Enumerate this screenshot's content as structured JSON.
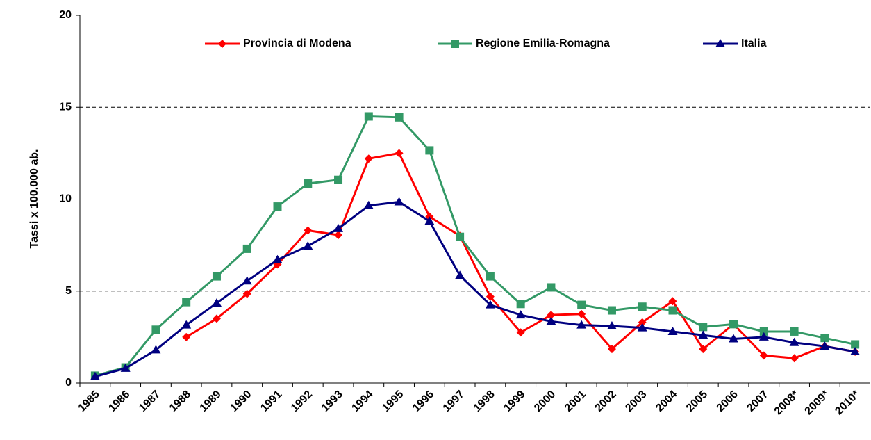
{
  "chart_data": {
    "type": "line",
    "y_label": "Tassi x 100.000 ab.",
    "categories": [
      "1985",
      "1986",
      "1987",
      "1988",
      "1989",
      "1990",
      "1991",
      "1992",
      "1993",
      "1994",
      "1995",
      "1996",
      "1997",
      "1998",
      "1999",
      "2000",
      "2001",
      "2002",
      "2003",
      "2004",
      "2005",
      "2006",
      "2007",
      "2008*",
      "2009*",
      "2010*"
    ],
    "series": [
      {
        "name": "Provincia di Modena",
        "color": "#ff0000",
        "marker": "diamond",
        "values": [
          null,
          null,
          null,
          2.5,
          3.5,
          4.85,
          6.45,
          8.3,
          8.05,
          12.2,
          12.5,
          9.05,
          8.0,
          4.7,
          2.75,
          3.7,
          3.75,
          1.85,
          3.3,
          4.45,
          1.85,
          3.2,
          1.5,
          1.35,
          2.0,
          1.7
        ]
      },
      {
        "name": "Regione Emilia-Romagna",
        "color": "#339966",
        "marker": "square",
        "values": [
          0.4,
          0.85,
          2.9,
          4.4,
          5.8,
          7.3,
          9.6,
          10.85,
          11.05,
          14.5,
          14.45,
          12.65,
          7.95,
          5.8,
          4.3,
          5.2,
          4.25,
          3.95,
          4.15,
          3.95,
          3.05,
          3.2,
          2.8,
          2.8,
          2.45,
          2.1
        ]
      },
      {
        "name": "Italia",
        "color": "#000080",
        "marker": "triangle",
        "values": [
          0.35,
          0.8,
          1.8,
          3.15,
          4.35,
          5.55,
          6.7,
          7.45,
          8.4,
          9.65,
          9.85,
          8.8,
          5.85,
          4.25,
          3.7,
          3.35,
          3.15,
          3.1,
          3.0,
          2.8,
          2.6,
          2.4,
          2.5,
          2.2,
          2.0,
          1.7
        ]
      }
    ],
    "ylim": [
      0,
      20
    ],
    "yticks": [
      0,
      5,
      10,
      15,
      20
    ],
    "grid": true,
    "legend": "top"
  }
}
